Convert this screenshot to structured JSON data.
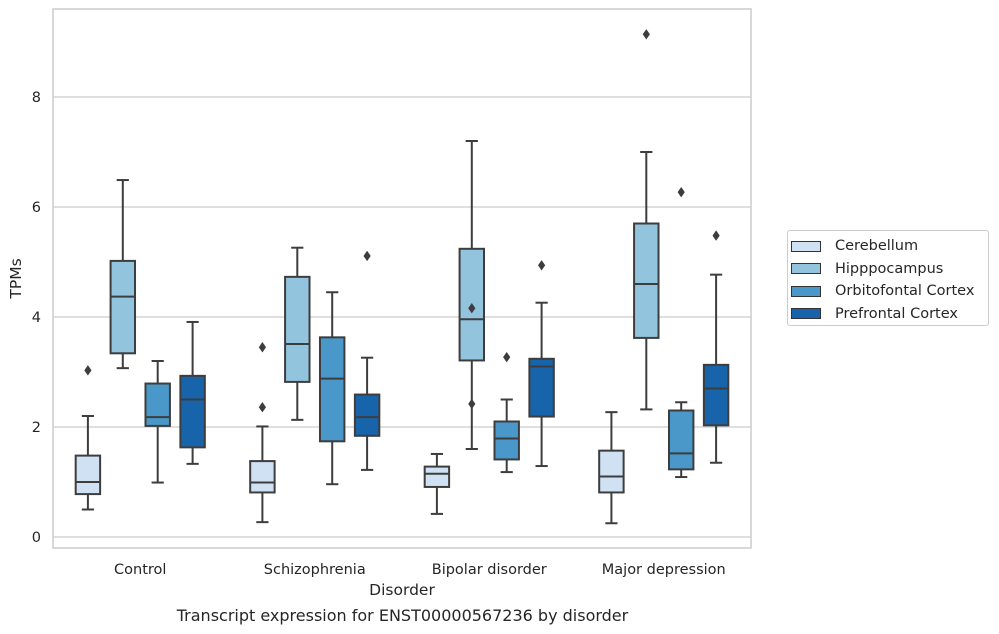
{
  "caption": "Transcript expression for ENST00000567236 by disorder",
  "colors": {
    "Cerebellum": "#cfe1f2",
    "Hipppocampus": "#93c4de",
    "Orbitofontal Cortex": "#4a98c9",
    "Prefrontal Cortex": "#1764ab",
    "grid": "#cccccc",
    "axes_edge": "#cccccc",
    "box_edge": "#3d3d3d"
  },
  "chart_data": {
    "type": "box",
    "xlabel": "Disorder",
    "ylabel": "TPMs",
    "categories": [
      "Control",
      "Schizophrenia",
      "Bipolar disorder",
      "Major depression"
    ],
    "ylim": [
      -0.2,
      9.6
    ],
    "yticks": [
      0,
      2,
      4,
      6,
      8
    ],
    "grid": "horizontal",
    "legend_position": "outside-right",
    "series": [
      {
        "name": "Cerebellum",
        "boxes": [
          {
            "whisker_low": 0.5,
            "q1": 0.78,
            "median": 1.0,
            "q3": 1.48,
            "whisker_high": 2.2,
            "outliers": [
              3.03
            ]
          },
          {
            "whisker_low": 0.27,
            "q1": 0.81,
            "median": 0.99,
            "q3": 1.38,
            "whisker_high": 2.01,
            "outliers": [
              2.36,
              3.45
            ]
          },
          {
            "whisker_low": 0.42,
            "q1": 0.91,
            "median": 1.15,
            "q3": 1.28,
            "whisker_high": 1.51,
            "outliers": []
          },
          {
            "whisker_low": 0.25,
            "q1": 0.81,
            "median": 1.1,
            "q3": 1.57,
            "whisker_high": 2.27,
            "outliers": []
          }
        ]
      },
      {
        "name": "Hipppocampus",
        "boxes": [
          {
            "whisker_low": 3.07,
            "q1": 3.34,
            "median": 4.37,
            "q3": 5.02,
            "whisker_high": 6.49,
            "outliers": []
          },
          {
            "whisker_low": 2.13,
            "q1": 2.82,
            "median": 3.51,
            "q3": 4.73,
            "whisker_high": 5.26,
            "outliers": []
          },
          {
            "whisker_low": 1.6,
            "q1": 3.21,
            "median": 3.96,
            "q3": 5.24,
            "whisker_high": 7.2,
            "outliers": [
              2.42,
              4.16
            ]
          },
          {
            "whisker_low": 2.32,
            "q1": 3.62,
            "median": 4.6,
            "q3": 5.7,
            "whisker_high": 7.0,
            "outliers": [
              9.14
            ]
          }
        ]
      },
      {
        "name": "Orbitofontal Cortex",
        "boxes": [
          {
            "whisker_low": 0.99,
            "q1": 2.02,
            "median": 2.18,
            "q3": 2.79,
            "whisker_high": 3.2,
            "outliers": []
          },
          {
            "whisker_low": 0.96,
            "q1": 1.74,
            "median": 2.88,
            "q3": 3.63,
            "whisker_high": 4.45,
            "outliers": []
          },
          {
            "whisker_low": 1.18,
            "q1": 1.41,
            "median": 1.79,
            "q3": 2.1,
            "whisker_high": 2.5,
            "outliers": [
              3.27
            ]
          },
          {
            "whisker_low": 1.09,
            "q1": 1.23,
            "median": 1.52,
            "q3": 2.3,
            "whisker_high": 2.45,
            "outliers": [
              6.27
            ]
          }
        ]
      },
      {
        "name": "Prefrontal Cortex",
        "boxes": [
          {
            "whisker_low": 1.33,
            "q1": 1.63,
            "median": 2.5,
            "q3": 2.93,
            "whisker_high": 3.91,
            "outliers": []
          },
          {
            "whisker_low": 1.22,
            "q1": 1.84,
            "median": 2.18,
            "q3": 2.59,
            "whisker_high": 3.26,
            "outliers": [
              5.11
            ]
          },
          {
            "whisker_low": 1.29,
            "q1": 2.19,
            "median": 3.1,
            "q3": 3.24,
            "whisker_high": 4.26,
            "outliers": [
              4.94
            ]
          },
          {
            "whisker_low": 1.35,
            "q1": 2.03,
            "median": 2.7,
            "q3": 3.13,
            "whisker_high": 4.77,
            "outliers": [
              5.48
            ]
          }
        ]
      }
    ]
  }
}
